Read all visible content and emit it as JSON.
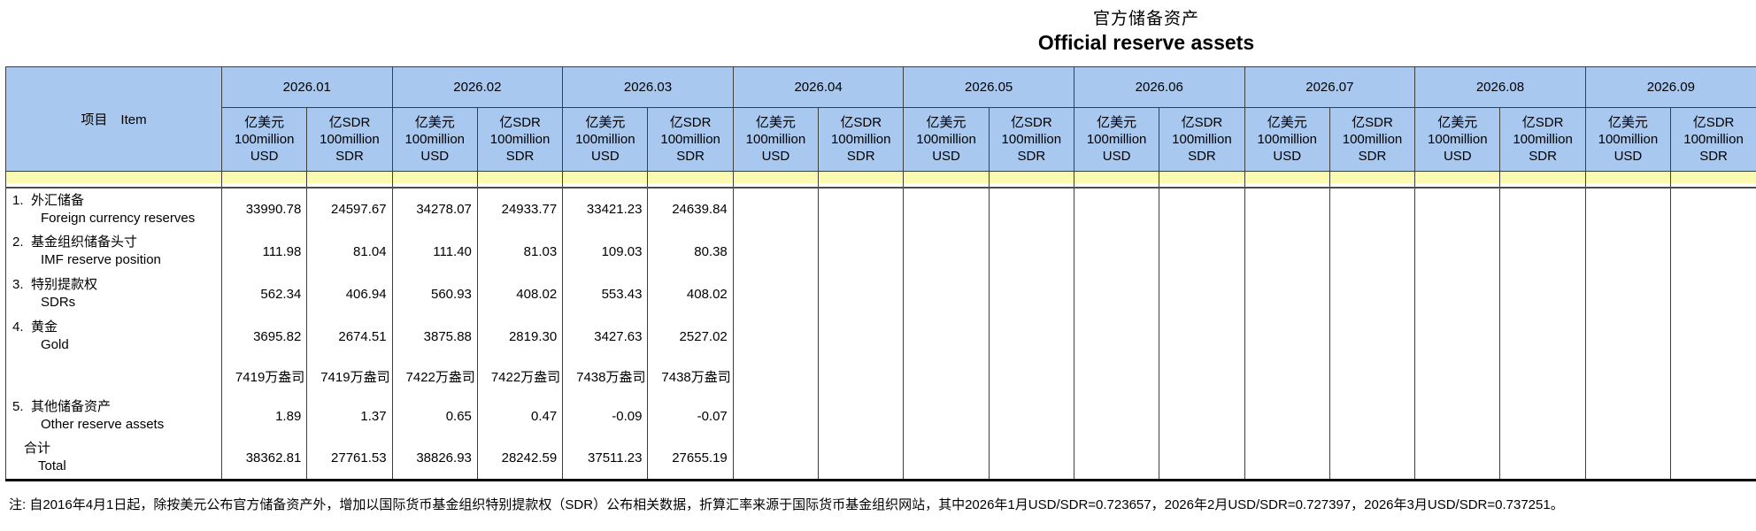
{
  "title": {
    "zh": "官方储备资产",
    "en": "Official reserve assets"
  },
  "table": {
    "item_header": "项目　Item",
    "months": [
      "2026.01",
      "2026.02",
      "2026.03",
      "2026.04",
      "2026.05",
      "2026.06",
      "2026.07",
      "2026.08",
      "2026.09"
    ],
    "unit_usd_lines": [
      "亿美元",
      "100million",
      "USD"
    ],
    "unit_sdr_lines": [
      "亿SDR",
      "100million",
      "SDR"
    ],
    "rows": [
      {
        "kind": "data",
        "num": "1.",
        "zh": "外汇储备",
        "en": "Foreign currency reserves",
        "values": [
          "33990.78",
          "24597.67",
          "34278.07",
          "24933.77",
          "33421.23",
          "24639.84",
          "",
          "",
          "",
          "",
          "",
          "",
          "",
          "",
          "",
          "",
          "",
          ""
        ]
      },
      {
        "kind": "data",
        "num": "2.",
        "zh": "基金组织储备头寸",
        "en": "IMF reserve position",
        "values": [
          "111.98",
          "81.04",
          "111.40",
          "81.03",
          "109.03",
          "80.38",
          "",
          "",
          "",
          "",
          "",
          "",
          "",
          "",
          "",
          "",
          "",
          ""
        ]
      },
      {
        "kind": "data",
        "num": "3.",
        "zh": "特别提款权",
        "en": "SDRs",
        "values": [
          "562.34",
          "406.94",
          "560.93",
          "408.02",
          "553.43",
          "408.02",
          "",
          "",
          "",
          "",
          "",
          "",
          "",
          "",
          "",
          "",
          "",
          ""
        ]
      },
      {
        "kind": "data",
        "num": "4.",
        "zh": "黄金",
        "en": "Gold",
        "values": [
          "3695.82",
          "2674.51",
          "3875.88",
          "2819.30",
          "3427.63",
          "2527.02",
          "",
          "",
          "",
          "",
          "",
          "",
          "",
          "",
          "",
          "",
          "",
          ""
        ]
      },
      {
        "kind": "ounce",
        "num": "",
        "zh": "",
        "en": "",
        "values": [
          "7419万盎司",
          "7419万盎司",
          "7422万盎司",
          "7422万盎司",
          "7438万盎司",
          "7438万盎司",
          "",
          "",
          "",
          "",
          "",
          "",
          "",
          "",
          "",
          "",
          "",
          ""
        ]
      },
      {
        "kind": "data",
        "num": "5.",
        "zh": "其他储备资产",
        "en": "Other reserve assets",
        "values": [
          "1.89",
          "1.37",
          "0.65",
          "0.47",
          "-0.09",
          "-0.07",
          "",
          "",
          "",
          "",
          "",
          "",
          "",
          "",
          "",
          "",
          "",
          ""
        ]
      },
      {
        "kind": "total",
        "num": "",
        "zh": "合计",
        "en": "Total",
        "values": [
          "38362.81",
          "27761.53",
          "38826.93",
          "28242.59",
          "37511.23",
          "27655.19",
          "",
          "",
          "",
          "",
          "",
          "",
          "",
          "",
          "",
          "",
          "",
          ""
        ]
      }
    ]
  },
  "note": "注: 自2016年4月1日起，除按美元公布官方储备资产外，增加以国际货币基金组织特别提款权（SDR）公布相关数据，折算汇率来源于国际货币基金组织网站，其中2026年1月USD/SDR=0.723657，2026年2月USD/SDR=0.727397，2026年3月USD/SDR=0.737251。"
}
